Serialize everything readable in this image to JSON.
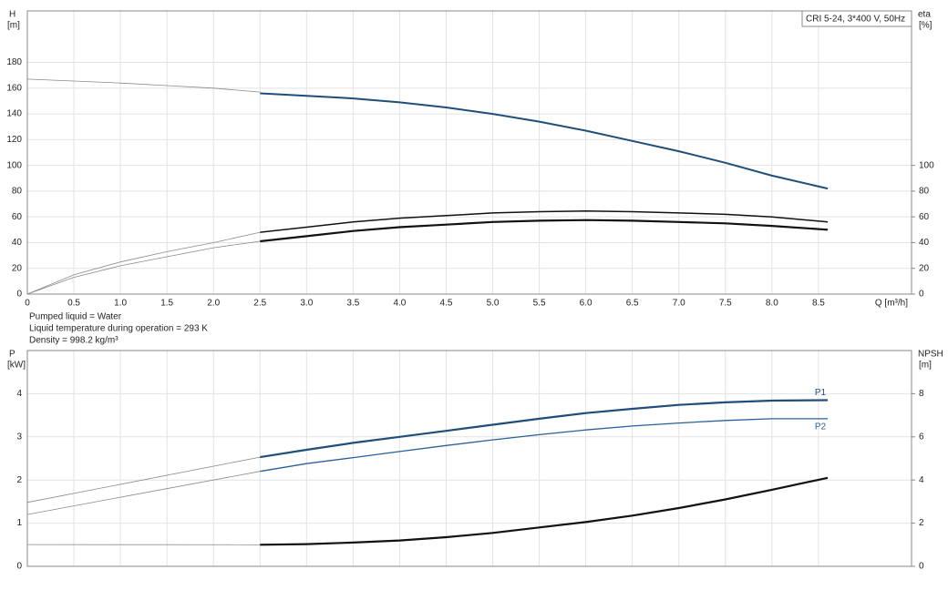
{
  "chart_data": [
    {
      "type": "line",
      "title": "CRI 5-24, 3*400 V, 50Hz",
      "ylabel": "H",
      "yunit": "[m]",
      "y2label": "eta",
      "y2unit": "[%]",
      "xlabel": "Q [m³/h]",
      "notes": [
        "Pumped liquid = Water",
        "Liquid temperature during operation = 293 K",
        "Density = 998.2 kg/m³"
      ],
      "xlim": [
        0,
        9.5
      ],
      "xticks": [
        0,
        0.5,
        {
          "value": 1,
          "label": "1.0"
        },
        1.5,
        {
          "value": 2,
          "label": "2.0"
        },
        2.5,
        {
          "value": 3,
          "label": "3.0"
        },
        3.5,
        {
          "value": 4,
          "label": "4.0"
        },
        4.5,
        {
          "value": 5,
          "label": "5.0"
        },
        5.5,
        {
          "value": 6,
          "label": "6.0"
        },
        6.5,
        {
          "value": 7,
          "label": "7.0"
        },
        7.5,
        {
          "value": 8,
          "label": "8.0"
        },
        8.5
      ],
      "ylim": [
        0,
        220
      ],
      "yticks": [
        0,
        20,
        40,
        60,
        80,
        100,
        120,
        140,
        160,
        180
      ],
      "y2lim": [
        0,
        220
      ],
      "y2ticks": [
        0,
        20,
        40,
        60,
        80,
        100
      ],
      "grid": true,
      "series": [
        {
          "color": "#8a8a8a",
          "width": 0.8,
          "x": [
            0,
            0.5,
            1,
            1.5,
            2,
            2.5
          ],
          "values": [
            167,
            165.5,
            164,
            162,
            160,
            157
          ]
        },
        {
          "color": "#1f4e79",
          "width": 2,
          "x": [
            2.5,
            3,
            3.5,
            4,
            4.5,
            5,
            5.5,
            6,
            6.5,
            7,
            7.5,
            8,
            8.6
          ],
          "values": [
            156,
            154,
            152,
            149,
            145,
            140,
            134,
            127,
            119,
            111,
            102,
            92,
            82
          ]
        },
        {
          "color": "#8a8a8a",
          "width": 0.8,
          "axis": "y2",
          "x": [
            0,
            0.5,
            1,
            1.5,
            2,
            2.5
          ],
          "values": [
            0,
            15,
            25,
            33,
            40,
            48
          ]
        },
        {
          "color": "#111111",
          "width": 1.5,
          "axis": "y2",
          "x": [
            2.5,
            3,
            3.5,
            4,
            4.5,
            5,
            5.5,
            6,
            6.5,
            7,
            7.5,
            8,
            8.6
          ],
          "values": [
            48,
            52,
            56,
            59,
            61,
            63,
            64,
            64.5,
            64,
            63,
            62,
            60,
            56
          ]
        },
        {
          "color": "#8a8a8a",
          "width": 0.8,
          "axis": "y2",
          "x": [
            0,
            0.5,
            1,
            1.5,
            2,
            2.5
          ],
          "values": [
            0,
            13,
            22,
            29,
            36,
            41
          ]
        },
        {
          "color": "#111111",
          "width": 2.2,
          "axis": "y2",
          "x": [
            2.5,
            3,
            3.5,
            4,
            4.5,
            5,
            5.5,
            6,
            6.5,
            7,
            7.5,
            8,
            8.6
          ],
          "values": [
            41,
            45,
            49,
            52,
            54,
            56,
            57,
            57.5,
            57,
            56,
            55,
            53,
            50
          ]
        }
      ]
    },
    {
      "type": "line",
      "ylabel": "P",
      "yunit": "[kW]",
      "y2label": "NPSH",
      "y2unit": "[m]",
      "xlim": [
        0,
        9.5
      ],
      "ylim": [
        0,
        5
      ],
      "yticks": [
        0,
        1,
        2,
        3,
        4
      ],
      "y2lim": [
        0,
        10
      ],
      "y2ticks": [
        0,
        2,
        4,
        6,
        8
      ],
      "grid": true,
      "series": [
        {
          "color": "#8a8a8a",
          "width": 0.8,
          "x": [
            0,
            2.5
          ],
          "values": [
            1.48,
            2.53
          ]
        },
        {
          "name": "P1",
          "label_pos": "above",
          "color": "#1f4e79",
          "width": 2.2,
          "x": [
            2.5,
            3,
            3.5,
            4,
            4.5,
            5,
            5.5,
            6,
            6.5,
            7,
            7.5,
            8,
            8.6
          ],
          "values": [
            2.53,
            2.7,
            2.86,
            3.0,
            3.14,
            3.28,
            3.42,
            3.55,
            3.65,
            3.74,
            3.8,
            3.84,
            3.85
          ]
        },
        {
          "color": "#8a8a8a",
          "width": 0.8,
          "x": [
            0,
            2.5
          ],
          "values": [
            1.2,
            2.2
          ]
        },
        {
          "name": "P2",
          "label_pos": "below",
          "color": "#2a6099",
          "width": 1.3,
          "x": [
            2.5,
            3,
            3.5,
            4,
            4.5,
            5,
            5.5,
            6,
            6.5,
            7,
            7.5,
            8,
            8.6
          ],
          "values": [
            2.2,
            2.38,
            2.52,
            2.66,
            2.8,
            2.93,
            3.05,
            3.16,
            3.25,
            3.32,
            3.38,
            3.42,
            3.42
          ]
        },
        {
          "color": "#8a8a8a",
          "width": 0.8,
          "axis": "y2",
          "x": [
            0,
            2.5
          ],
          "values": [
            1.01,
            1.0
          ]
        },
        {
          "color": "#111111",
          "width": 2.2,
          "axis": "y2",
          "x": [
            2.5,
            3,
            3.5,
            4,
            4.5,
            5,
            5.5,
            6,
            6.5,
            7,
            7.5,
            8,
            8.6
          ],
          "values": [
            1.0,
            1.03,
            1.1,
            1.2,
            1.35,
            1.55,
            1.8,
            2.05,
            2.35,
            2.7,
            3.1,
            3.55,
            4.1
          ]
        }
      ]
    }
  ]
}
